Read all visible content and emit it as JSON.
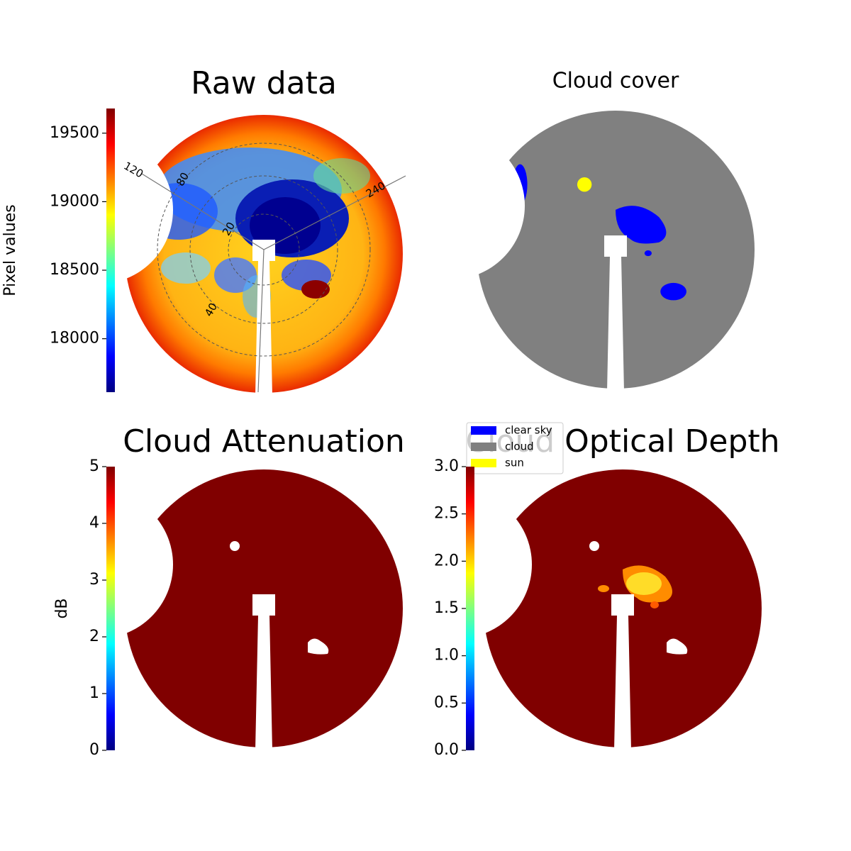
{
  "chart_data": [
    {
      "type": "image",
      "title": "Raw data",
      "colorbar_label": "Pixel values",
      "colormap": "jet",
      "clim": [
        17610,
        19680
      ],
      "cticks": [
        18000,
        18500,
        19000,
        19500
      ],
      "annotations": [
        "120",
        "80",
        "20",
        "40",
        "240"
      ]
    },
    {
      "type": "image",
      "title": "Cloud cover",
      "legend": [
        {
          "name": "clear sky",
          "color": "#0000ff"
        },
        {
          "name": "cloud",
          "color": "#808080"
        },
        {
          "name": "sun",
          "color": "#ffff00"
        }
      ]
    },
    {
      "type": "image",
      "title": "Cloud Attenuation",
      "colorbar_label": "dB",
      "colormap": "jet",
      "clim": [
        0,
        5
      ],
      "cticks": [
        0,
        1,
        2,
        3,
        4,
        5
      ]
    },
    {
      "type": "image",
      "title": "Cloud Optical Depth",
      "colormap": "jet",
      "clim": [
        0,
        3
      ],
      "cticks": [
        {
          "value": 0,
          "label": "0.0"
        },
        0.5,
        {
          "value": 1,
          "label": "1.0"
        },
        1.5,
        {
          "value": 2,
          "label": "2.0"
        },
        2.5,
        {
          "value": 3,
          "label": "3.0"
        }
      ]
    }
  ]
}
